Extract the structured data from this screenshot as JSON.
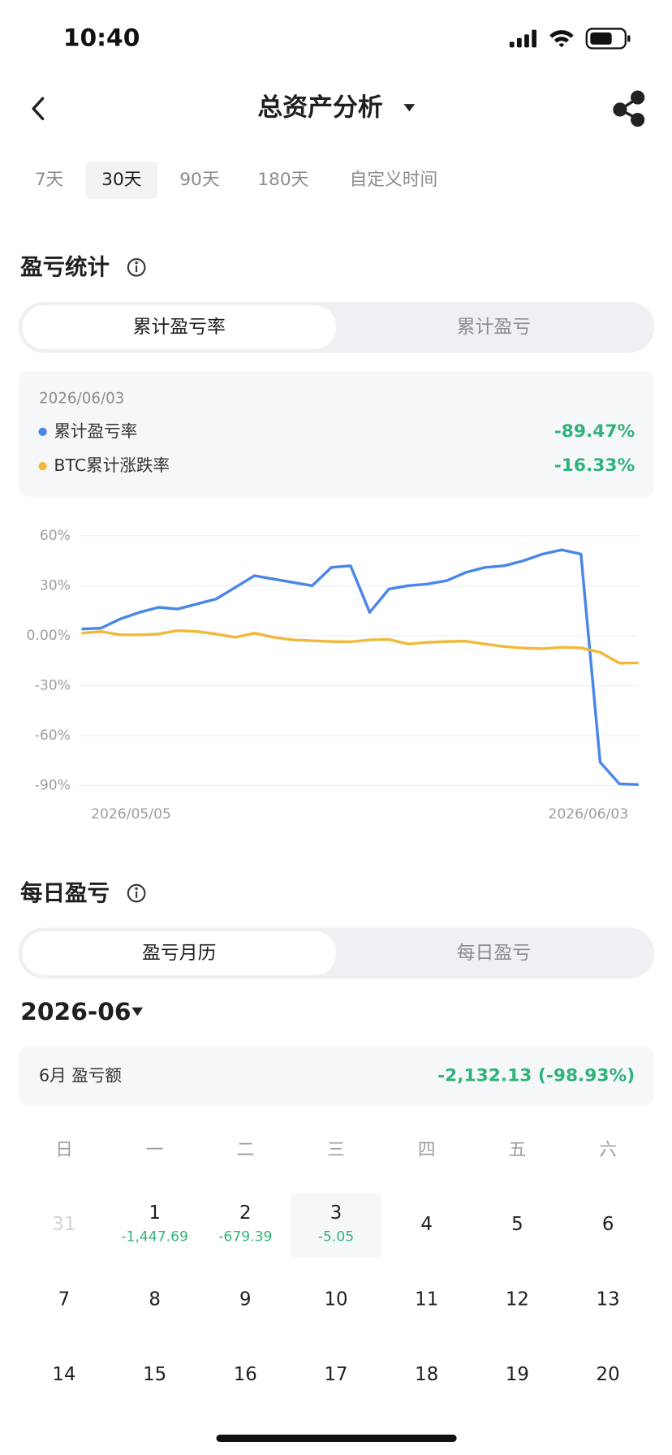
{
  "status_bar": {
    "time": "10:40"
  },
  "header": {
    "title": "总资产分析"
  },
  "tabs": {
    "items": [
      "7天",
      "30天",
      "90天",
      "180天",
      "自定义时间"
    ],
    "active": 1
  },
  "pnl_section": {
    "title": "盈亏统计",
    "toggle": [
      "累计盈亏率",
      "累计盈亏"
    ],
    "summary": {
      "date": "2026/06/03",
      "values": [
        "-89.47%",
        "-16.33%"
      ]
    }
  },
  "chart_data": {
    "type": "line",
    "categories": [
      "2026/05/05",
      null,
      null,
      null,
      null,
      null,
      null,
      null,
      null,
      null,
      null,
      null,
      null,
      null,
      null,
      null,
      null,
      null,
      null,
      null,
      null,
      null,
      null,
      null,
      null,
      null,
      null,
      null,
      null,
      "2026/06/03"
    ],
    "series": [
      {
        "name": "累计盈亏率",
        "color": "#4a86e8",
        "values": [
          4,
          4.5,
          10,
          14,
          17,
          16,
          19,
          22,
          29,
          36,
          34,
          32,
          30,
          41,
          42,
          14,
          28,
          30,
          31,
          33,
          38,
          41,
          42,
          45,
          49,
          51.5,
          49,
          -76,
          -89,
          -89.47
        ]
      },
      {
        "name": "BTC累计涨跌率",
        "color": "#f0b93c",
        "values": [
          1.5,
          2.5,
          0.5,
          0.5,
          1,
          3,
          2.5,
          1,
          -1,
          1.5,
          -1,
          -2.5,
          -3,
          -3.5,
          -3.7,
          -2.5,
          -2.3,
          -5,
          -4,
          -3.5,
          -3.3,
          -5,
          -6.5,
          -7.5,
          -7.8,
          -7,
          -7.3,
          -10,
          -16.5,
          -16.33
        ]
      }
    ],
    "ylim": [
      -90,
      60
    ],
    "yticks": [
      {
        "value": 60,
        "label": "60%"
      },
      {
        "value": 30,
        "label": "30%"
      },
      {
        "value": 0,
        "label": "0.00%"
      },
      {
        "value": -30,
        "label": "-30%"
      },
      {
        "value": -60,
        "label": "-60%"
      },
      {
        "value": -90,
        "label": "-90%"
      }
    ],
    "grid": true
  },
  "daily_section": {
    "title": "每日盈亏",
    "toggle": [
      "盈亏月历",
      "每日盈亏"
    ],
    "month": "2026-06",
    "summary": {
      "label": "6月 盈亏额",
      "value": "-2,132.13 (-98.93%)"
    },
    "weekdays": [
      "日",
      "一",
      "二",
      "三",
      "四",
      "五",
      "六"
    ],
    "weeks": [
      [
        {
          "day": 31,
          "muted": true
        },
        {
          "day": 1,
          "pnl": "-1,447.69"
        },
        {
          "day": 2,
          "pnl": "-679.39"
        },
        {
          "day": 3,
          "pnl": "-5.05",
          "selected": true
        },
        {
          "day": 4
        },
        {
          "day": 5
        },
        {
          "day": 6
        }
      ],
      [
        {
          "day": 7
        },
        {
          "day": 8
        },
        {
          "day": 9
        },
        {
          "day": 10
        },
        {
          "day": 11
        },
        {
          "day": 12
        },
        {
          "day": 13
        }
      ],
      [
        {
          "day": 14
        },
        {
          "day": 15
        },
        {
          "day": 16
        },
        {
          "day": 17
        },
        {
          "day": 18
        },
        {
          "day": 19
        },
        {
          "day": 20
        }
      ]
    ]
  }
}
